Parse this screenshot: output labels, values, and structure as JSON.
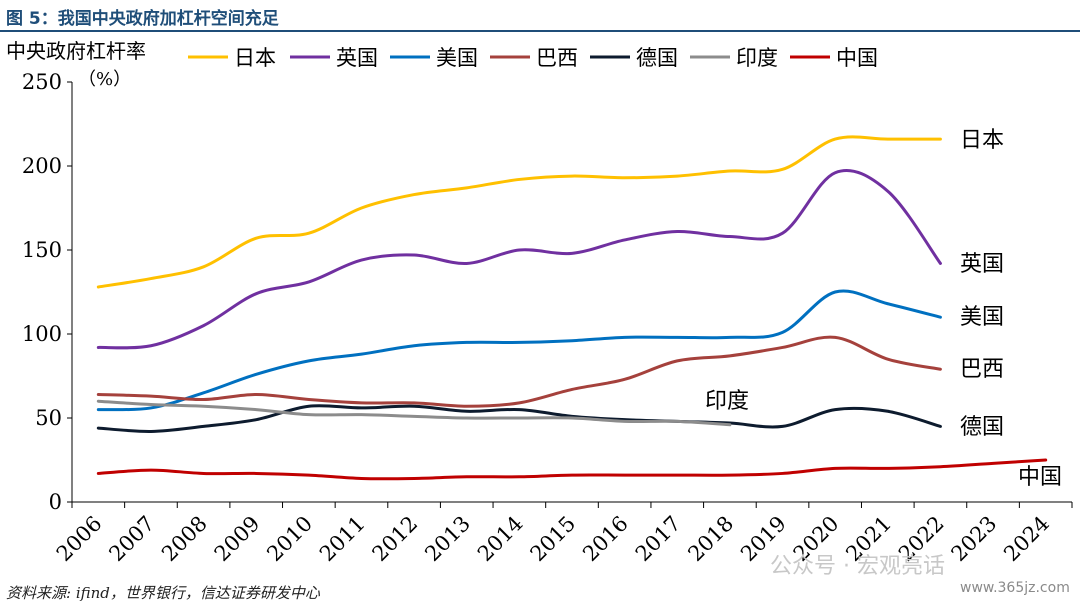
{
  "figure": {
    "title": "图 5：我国中央政府加杠杆空间充足",
    "source": "资料来源: ifind，世界银行，信达证券研发中心",
    "watermark": "公众号 · 宏观亮话",
    "site": "www.365jz.com"
  },
  "chart_data": {
    "type": "line",
    "ylabel": "中央政府杠杆率",
    "yunit": "（%）",
    "ylim": [
      0,
      250
    ],
    "yticks": [
      0,
      50,
      100,
      150,
      200,
      250
    ],
    "categories": [
      "2006",
      "2007",
      "2008",
      "2009",
      "2010",
      "2011",
      "2012",
      "2013",
      "2014",
      "2015",
      "2016",
      "2017",
      "2018",
      "2019",
      "2020",
      "2021",
      "2022",
      "2023",
      "2024"
    ],
    "grid": false,
    "legend_position": "top",
    "series": [
      {
        "name": "日本",
        "color": "#ffc000",
        "end_label": "日本",
        "values": [
          128,
          133,
          140,
          157,
          160,
          175,
          183,
          187,
          192,
          194,
          193,
          194,
          197,
          198,
          216,
          216,
          216,
          null,
          null
        ]
      },
      {
        "name": "英国",
        "color": "#7030a0",
        "end_label": "英国",
        "values": [
          92,
          93,
          105,
          124,
          131,
          144,
          147,
          142,
          150,
          148,
          156,
          161,
          158,
          160,
          196,
          185,
          142,
          null,
          null
        ]
      },
      {
        "name": "美国",
        "color": "#0070c0",
        "end_label": "美国",
        "values": [
          55,
          56,
          65,
          76,
          84,
          88,
          93,
          95,
          95,
          96,
          98,
          98,
          98,
          101,
          125,
          118,
          110,
          null,
          null
        ]
      },
      {
        "name": "巴西",
        "color": "#a5413c",
        "end_label": "巴西",
        "values": [
          64,
          63,
          61,
          64,
          61,
          59,
          59,
          57,
          59,
          67,
          73,
          84,
          87,
          92,
          98,
          85,
          79,
          null,
          null
        ]
      },
      {
        "name": "德国",
        "color": "#0d1b2e",
        "end_label": "德国",
        "values": [
          44,
          42,
          45,
          49,
          57,
          56,
          57,
          54,
          55,
          51,
          49,
          48,
          47,
          45,
          55,
          54,
          45,
          null,
          null
        ]
      },
      {
        "name": "印度",
        "color": "#8c8c8c",
        "end_label": "印度",
        "values": [
          60,
          58,
          57,
          55,
          52,
          52,
          51,
          50,
          50,
          50,
          48,
          48,
          46,
          null,
          null,
          null,
          null,
          null,
          null
        ]
      },
      {
        "name": "中国",
        "color": "#c00000",
        "end_label": "中国",
        "values": [
          17,
          19,
          17,
          17,
          16,
          14,
          14,
          15,
          15,
          16,
          16,
          16,
          16,
          17,
          20,
          20,
          21,
          23,
          25
        ]
      }
    ]
  }
}
